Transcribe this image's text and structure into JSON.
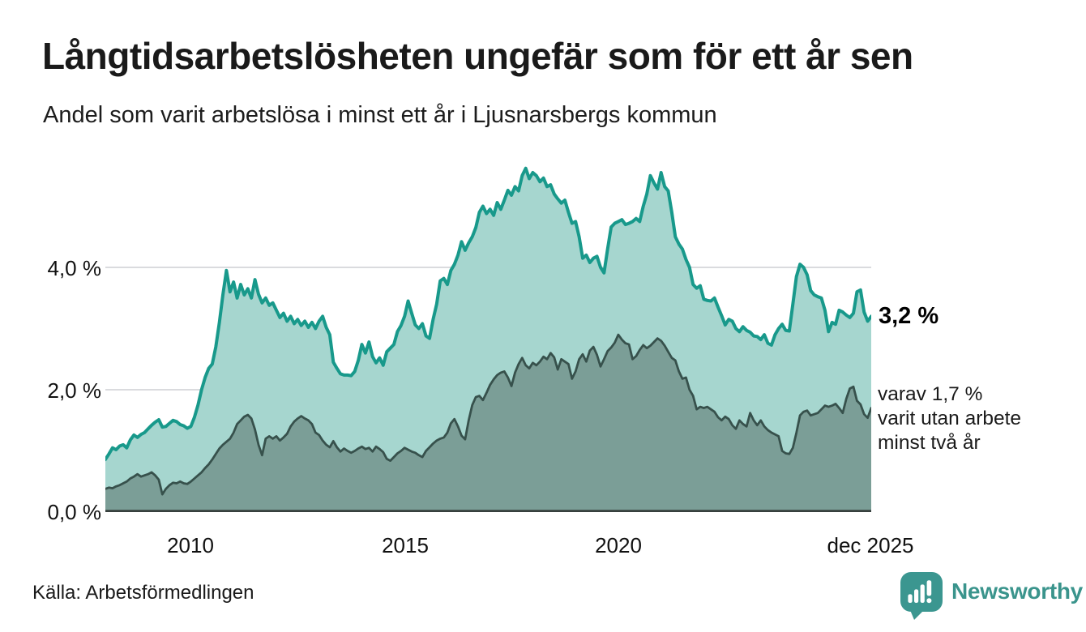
{
  "title": "Långtidsarbetslösheten ungefär som för ett år sen",
  "subtitle": "Andel som varit arbetslösa i minst ett år i Ljusnarsbergs kommun",
  "source": "Källa: Arbetsförmedlingen",
  "branding": {
    "name": "Newsworthy",
    "color": "#3a948c"
  },
  "annotations": {
    "total_latest": "3,2 %",
    "subset_note": "varav 1,7 %\nvarit utan arbete\nminst två år"
  },
  "axes": {
    "y_ticks": [
      "4,0 %",
      "2,0 %",
      "0,0 %"
    ],
    "x_ticks": [
      "2010",
      "2015",
      "2020",
      "dec 2025"
    ]
  },
  "chart_data": {
    "type": "area",
    "title": "Andel som varit arbetslösa i minst ett år i Ljusnarsbergs kommun",
    "x_start": "2008-01",
    "x_end": "2025-12",
    "frequency": "monthly",
    "ylabel": "%",
    "ylim": [
      0,
      5.85
    ],
    "y_gridlines": [
      2.0,
      4.0
    ],
    "grid_color": "#dadbde",
    "baseline_color": "#37403e",
    "latest": {
      "at_least_one_year": 3.2,
      "at_least_two_years": 1.7
    },
    "series": [
      {
        "name": "Andel arbetslösa minst ett år",
        "line_color": "#18998b",
        "fill_color": "#a6d6cf",
        "values": [
          0.86,
          0.95,
          1.05,
          1.02,
          1.08,
          1.1,
          1.05,
          1.18,
          1.26,
          1.22,
          1.27,
          1.3,
          1.36,
          1.42,
          1.47,
          1.51,
          1.39,
          1.4,
          1.45,
          1.5,
          1.48,
          1.43,
          1.41,
          1.37,
          1.4,
          1.55,
          1.75,
          2.0,
          2.2,
          2.35,
          2.42,
          2.7,
          3.1,
          3.55,
          3.95,
          3.6,
          3.76,
          3.5,
          3.72,
          3.55,
          3.65,
          3.5,
          3.8,
          3.56,
          3.42,
          3.5,
          3.38,
          3.42,
          3.3,
          3.18,
          3.25,
          3.12,
          3.2,
          3.08,
          3.15,
          3.05,
          3.12,
          3.02,
          3.1,
          3.0,
          3.12,
          3.2,
          3.02,
          2.9,
          2.45,
          2.35,
          2.26,
          2.24,
          2.24,
          2.23,
          2.3,
          2.48,
          2.74,
          2.6,
          2.78,
          2.54,
          2.44,
          2.52,
          2.4,
          2.62,
          2.68,
          2.74,
          2.95,
          3.05,
          3.2,
          3.45,
          3.25,
          3.06,
          3.0,
          3.08,
          2.88,
          2.84,
          3.15,
          3.4,
          3.78,
          3.82,
          3.72,
          3.95,
          4.05,
          4.2,
          4.42,
          4.28,
          4.4,
          4.5,
          4.65,
          4.9,
          5.0,
          4.88,
          4.95,
          4.85,
          5.06,
          4.95,
          5.1,
          5.26,
          5.18,
          5.32,
          5.25,
          5.5,
          5.62,
          5.45,
          5.55,
          5.5,
          5.4,
          5.46,
          5.32,
          5.35,
          5.2,
          5.12,
          5.05,
          5.1,
          4.9,
          4.72,
          4.75,
          4.5,
          4.15,
          4.2,
          4.08,
          4.15,
          4.18,
          4.0,
          3.91,
          4.3,
          4.66,
          4.72,
          4.75,
          4.78,
          4.7,
          4.72,
          4.75,
          4.8,
          4.75,
          5.0,
          5.2,
          5.5,
          5.38,
          5.28,
          5.55,
          5.32,
          5.25,
          4.9,
          4.5,
          4.38,
          4.3,
          4.13,
          4.0,
          3.72,
          3.66,
          3.7,
          3.48,
          3.46,
          3.45,
          3.5,
          3.35,
          3.21,
          3.06,
          3.15,
          3.12,
          3.0,
          2.95,
          3.03,
          2.97,
          2.94,
          2.88,
          2.87,
          2.82,
          2.9,
          2.76,
          2.73,
          2.9,
          3.0,
          3.07,
          2.97,
          2.96,
          3.4,
          3.85,
          4.05,
          4.0,
          3.88,
          3.62,
          3.55,
          3.52,
          3.5,
          3.3,
          2.95,
          3.1,
          3.07,
          3.3,
          3.27,
          3.22,
          3.18,
          3.25,
          3.6,
          3.63,
          3.27,
          3.12,
          3.2
        ]
      },
      {
        "name": "Andel arbetslösa minst två år",
        "line_color": "#37514c",
        "fill_color": "#7b9e97",
        "values": [
          0.38,
          0.4,
          0.39,
          0.42,
          0.44,
          0.47,
          0.5,
          0.55,
          0.58,
          0.62,
          0.58,
          0.6,
          0.62,
          0.65,
          0.6,
          0.53,
          0.29,
          0.38,
          0.44,
          0.48,
          0.47,
          0.5,
          0.47,
          0.46,
          0.5,
          0.55,
          0.6,
          0.65,
          0.72,
          0.78,
          0.86,
          0.95,
          1.04,
          1.1,
          1.15,
          1.2,
          1.3,
          1.44,
          1.5,
          1.56,
          1.59,
          1.53,
          1.35,
          1.1,
          0.93,
          1.2,
          1.24,
          1.2,
          1.24,
          1.17,
          1.22,
          1.28,
          1.4,
          1.48,
          1.53,
          1.57,
          1.53,
          1.5,
          1.44,
          1.3,
          1.26,
          1.17,
          1.1,
          1.06,
          1.16,
          1.06,
          0.99,
          1.04,
          1.0,
          0.97,
          1.0,
          1.04,
          1.07,
          1.03,
          1.05,
          0.99,
          1.07,
          1.03,
          0.98,
          0.87,
          0.84,
          0.9,
          0.96,
          1.0,
          1.05,
          1.02,
          0.99,
          0.97,
          0.93,
          0.9,
          1.0,
          1.06,
          1.12,
          1.17,
          1.2,
          1.22,
          1.3,
          1.45,
          1.52,
          1.4,
          1.25,
          1.19,
          1.5,
          1.75,
          1.88,
          1.9,
          1.83,
          1.95,
          2.08,
          2.17,
          2.24,
          2.28,
          2.3,
          2.2,
          2.06,
          2.28,
          2.42,
          2.52,
          2.4,
          2.35,
          2.44,
          2.4,
          2.46,
          2.54,
          2.5,
          2.6,
          2.53,
          2.33,
          2.5,
          2.46,
          2.42,
          2.18,
          2.3,
          2.5,
          2.58,
          2.46,
          2.64,
          2.7,
          2.57,
          2.38,
          2.5,
          2.63,
          2.69,
          2.77,
          2.9,
          2.82,
          2.76,
          2.74,
          2.5,
          2.55,
          2.65,
          2.73,
          2.68,
          2.72,
          2.78,
          2.84,
          2.8,
          2.72,
          2.62,
          2.52,
          2.48,
          2.3,
          2.18,
          2.2,
          2.0,
          1.9,
          1.68,
          1.72,
          1.7,
          1.72,
          1.68,
          1.64,
          1.55,
          1.5,
          1.56,
          1.52,
          1.42,
          1.36,
          1.5,
          1.44,
          1.4,
          1.62,
          1.5,
          1.42,
          1.5,
          1.4,
          1.34,
          1.3,
          1.27,
          1.24,
          1.0,
          0.96,
          0.95,
          1.05,
          1.3,
          1.58,
          1.64,
          1.66,
          1.58,
          1.6,
          1.62,
          1.68,
          1.74,
          1.72,
          1.74,
          1.77,
          1.7,
          1.62,
          1.85,
          2.02,
          2.05,
          1.82,
          1.76,
          1.6,
          1.54,
          1.7
        ]
      }
    ]
  }
}
